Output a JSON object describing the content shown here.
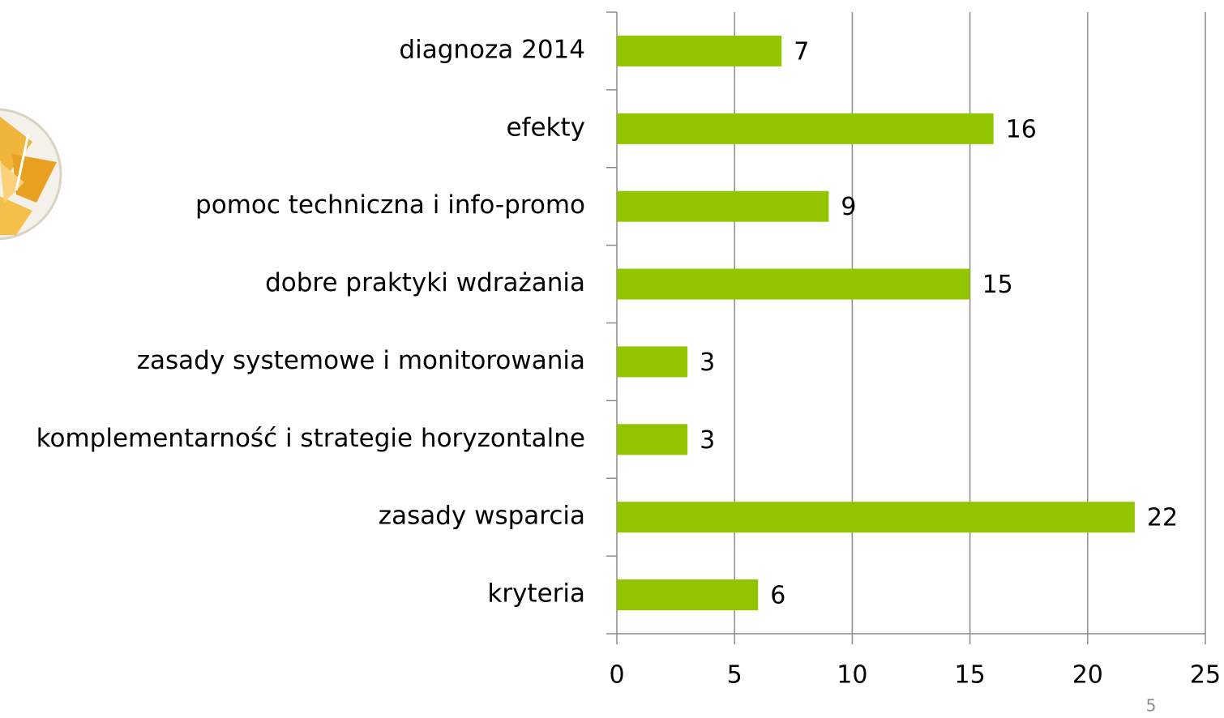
{
  "chart_data": {
    "type": "bar",
    "orientation": "horizontal",
    "categories": [
      "diagnoza 2014",
      "efekty",
      "pomoc techniczna i info-promo",
      "dobre praktyki wdrażania",
      "zasady systemowe i monitorowania",
      "komplementarność i strategie horyzontalne",
      "zasady wsparcia",
      "kryteria"
    ],
    "values": [
      7,
      16,
      9,
      15,
      3,
      3,
      22,
      6
    ],
    "color": "#92c500",
    "xlim": [
      0,
      25
    ],
    "xticks": [
      0,
      5,
      10,
      15,
      20,
      25
    ],
    "grid": true
  },
  "page_number": "5"
}
